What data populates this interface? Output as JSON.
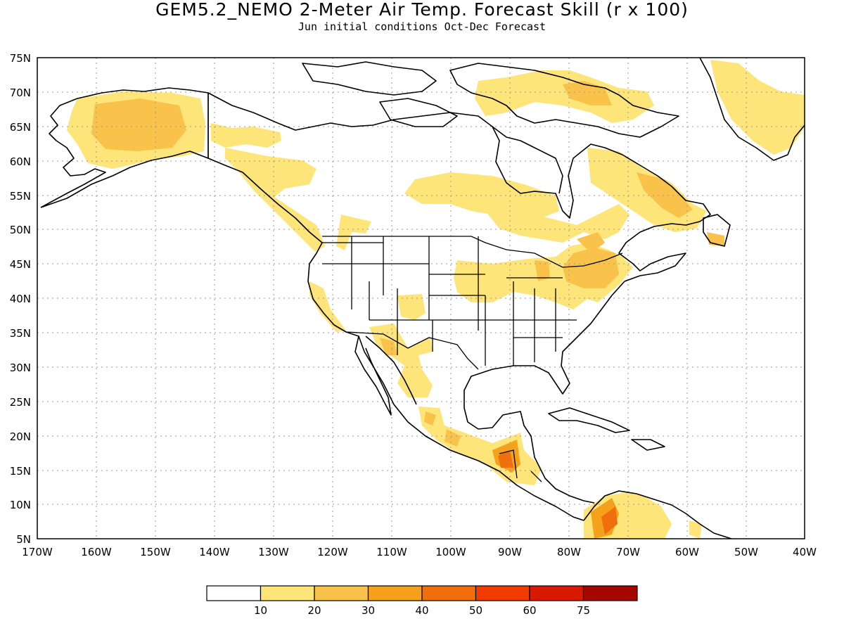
{
  "title": "GEM5.2_NEMO 2-Meter Air Temp. Forecast Skill (r x 100)",
  "subtitle": "Jun initial conditions  Oct-Dec Forecast",
  "map": {
    "lat_labels": [
      "75N",
      "70N",
      "65N",
      "60N",
      "55N",
      "50N",
      "45N",
      "40N",
      "35N",
      "30N",
      "25N",
      "20N",
      "15N",
      "10N",
      "5N"
    ],
    "lon_labels": [
      "170W",
      "160W",
      "150W",
      "140W",
      "130W",
      "120W",
      "110W",
      "100W",
      "90W",
      "80W",
      "70W",
      "60W",
      "50W",
      "40W"
    ],
    "lat_range": [
      5,
      75
    ],
    "lon_range": [
      -170,
      -40
    ],
    "grid": "dotted"
  },
  "legend": {
    "labels": [
      "10",
      "20",
      "30",
      "40",
      "50",
      "60",
      "75"
    ],
    "colors": [
      "#ffffff",
      "#fde57a",
      "#f9c24a",
      "#f5a11c",
      "#f06e0b",
      "#f03c00",
      "#d71a00",
      "#a50800"
    ]
  },
  "colors": {
    "coast": "#000000",
    "grid": "#9a9a9a"
  }
}
